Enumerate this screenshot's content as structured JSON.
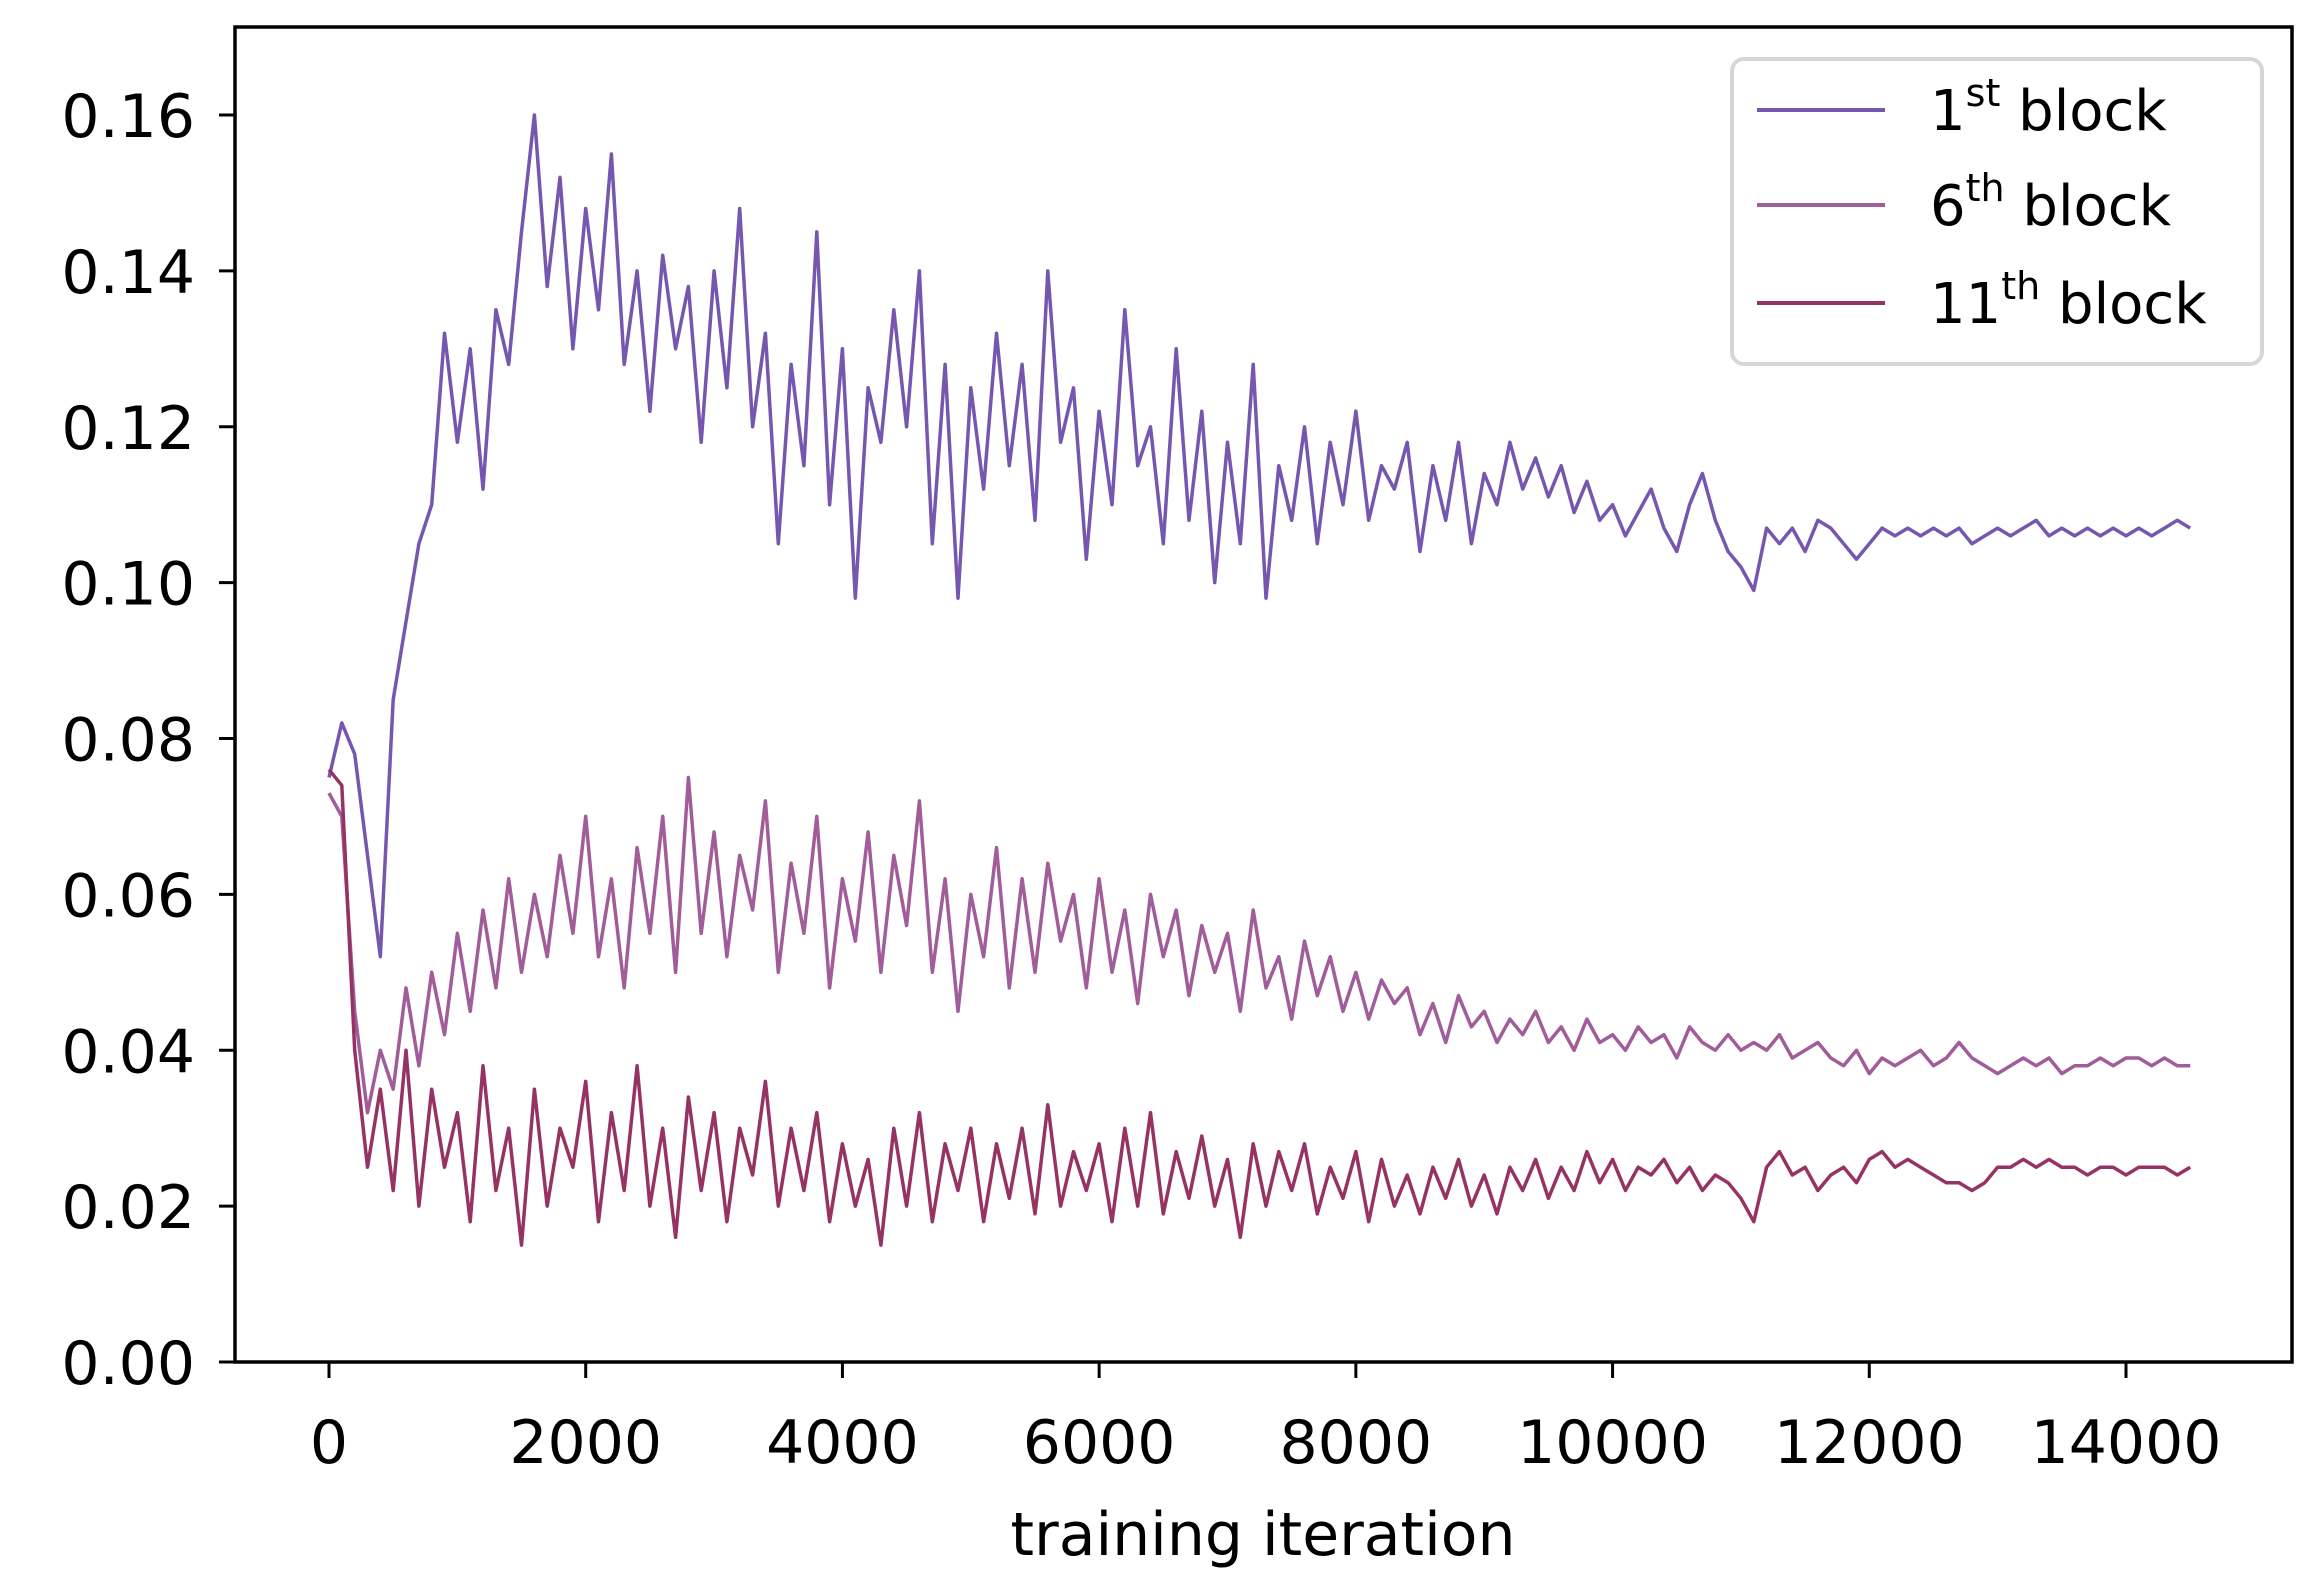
{
  "chart_data": {
    "type": "line",
    "title": "",
    "xlabel": "training iteration",
    "ylabel": "",
    "xlim": [
      -900,
      15300
    ],
    "ylim": [
      0,
      0.17
    ],
    "xticks": [
      0,
      2000,
      4000,
      6000,
      8000,
      10000,
      12000,
      14000
    ],
    "xtick_labels": [
      "0",
      "2000",
      "4000",
      "6000",
      "8000",
      "10000",
      "12000",
      "14000"
    ],
    "yticks": [
      0,
      0.02,
      0.04,
      0.06,
      0.08,
      0.1,
      0.12,
      0.14,
      0.16
    ],
    "ytick_labels": [
      "0.00",
      "0.02",
      "0.04",
      "0.06",
      "0.08",
      "0.10",
      "0.12",
      "0.14",
      "0.16"
    ],
    "grid": false,
    "legend_position": "top-right",
    "x_start": 0,
    "x_step": 100,
    "series": [
      {
        "name": "1st block",
        "label_main": "1",
        "label_sup": "st",
        "label_rest": " block",
        "color": "#7657b0",
        "values": [
          0.075,
          0.082,
          0.078,
          0.065,
          0.052,
          0.085,
          0.095,
          0.105,
          0.11,
          0.132,
          0.118,
          0.13,
          0.112,
          0.135,
          0.128,
          0.145,
          0.16,
          0.138,
          0.152,
          0.13,
          0.148,
          0.135,
          0.155,
          0.128,
          0.14,
          0.122,
          0.142,
          0.13,
          0.138,
          0.118,
          0.14,
          0.125,
          0.148,
          0.12,
          0.132,
          0.105,
          0.128,
          0.115,
          0.145,
          0.11,
          0.13,
          0.098,
          0.125,
          0.118,
          0.135,
          0.12,
          0.14,
          0.105,
          0.128,
          0.098,
          0.125,
          0.112,
          0.132,
          0.115,
          0.128,
          0.108,
          0.14,
          0.118,
          0.125,
          0.103,
          0.122,
          0.11,
          0.135,
          0.115,
          0.12,
          0.105,
          0.13,
          0.108,
          0.122,
          0.1,
          0.118,
          0.105,
          0.128,
          0.098,
          0.115,
          0.108,
          0.12,
          0.105,
          0.118,
          0.11,
          0.122,
          0.108,
          0.115,
          0.112,
          0.118,
          0.104,
          0.115,
          0.108,
          0.118,
          0.105,
          0.114,
          0.11,
          0.118,
          0.112,
          0.116,
          0.111,
          0.115,
          0.109,
          0.113,
          0.108,
          0.11,
          0.106,
          0.109,
          0.112,
          0.107,
          0.104,
          0.11,
          0.114,
          0.108,
          0.104,
          0.102,
          0.099,
          0.107,
          0.105,
          0.107,
          0.104,
          0.108,
          0.107,
          0.105,
          0.103,
          0.105,
          0.107,
          0.106,
          0.107,
          0.106,
          0.107,
          0.106,
          0.107,
          0.105,
          0.106,
          0.107,
          0.106,
          0.107,
          0.108,
          0.106,
          0.107,
          0.106,
          0.107,
          0.106,
          0.107,
          0.106,
          0.107,
          0.106,
          0.107,
          0.108,
          0.107
        ]
      },
      {
        "name": "6th block",
        "label_main": "6",
        "label_sup": "th",
        "label_rest": " block",
        "color": "#a15c9a",
        "values": [
          0.073,
          0.07,
          0.045,
          0.032,
          0.04,
          0.035,
          0.048,
          0.038,
          0.05,
          0.042,
          0.055,
          0.045,
          0.058,
          0.048,
          0.062,
          0.05,
          0.06,
          0.052,
          0.065,
          0.055,
          0.07,
          0.052,
          0.062,
          0.048,
          0.066,
          0.055,
          0.07,
          0.05,
          0.075,
          0.055,
          0.068,
          0.052,
          0.065,
          0.058,
          0.072,
          0.05,
          0.064,
          0.055,
          0.07,
          0.048,
          0.062,
          0.054,
          0.068,
          0.05,
          0.065,
          0.056,
          0.072,
          0.05,
          0.062,
          0.045,
          0.06,
          0.052,
          0.066,
          0.048,
          0.062,
          0.05,
          0.064,
          0.054,
          0.06,
          0.048,
          0.062,
          0.05,
          0.058,
          0.046,
          0.06,
          0.052,
          0.058,
          0.047,
          0.056,
          0.05,
          0.055,
          0.045,
          0.058,
          0.048,
          0.052,
          0.044,
          0.054,
          0.047,
          0.052,
          0.045,
          0.05,
          0.044,
          0.049,
          0.046,
          0.048,
          0.042,
          0.046,
          0.041,
          0.047,
          0.043,
          0.045,
          0.041,
          0.044,
          0.042,
          0.045,
          0.041,
          0.043,
          0.04,
          0.044,
          0.041,
          0.042,
          0.04,
          0.043,
          0.041,
          0.042,
          0.039,
          0.043,
          0.041,
          0.04,
          0.042,
          0.04,
          0.041,
          0.04,
          0.042,
          0.039,
          0.04,
          0.041,
          0.039,
          0.038,
          0.04,
          0.037,
          0.039,
          0.038,
          0.039,
          0.04,
          0.038,
          0.039,
          0.041,
          0.039,
          0.038,
          0.037,
          0.038,
          0.039,
          0.038,
          0.039,
          0.037,
          0.038,
          0.038,
          0.039,
          0.038,
          0.039,
          0.039,
          0.038,
          0.039,
          0.038,
          0.038
        ]
      },
      {
        "name": "11th block",
        "label_main": "11",
        "label_sup": "th",
        "label_rest": " block",
        "color": "#963363",
        "values": [
          0.076,
          0.074,
          0.04,
          0.025,
          0.035,
          0.022,
          0.04,
          0.02,
          0.035,
          0.025,
          0.032,
          0.018,
          0.038,
          0.022,
          0.03,
          0.015,
          0.035,
          0.02,
          0.03,
          0.025,
          0.036,
          0.018,
          0.032,
          0.022,
          0.038,
          0.02,
          0.03,
          0.016,
          0.034,
          0.022,
          0.032,
          0.018,
          0.03,
          0.024,
          0.036,
          0.02,
          0.03,
          0.022,
          0.032,
          0.018,
          0.028,
          0.02,
          0.026,
          0.015,
          0.03,
          0.02,
          0.032,
          0.018,
          0.028,
          0.022,
          0.03,
          0.018,
          0.028,
          0.021,
          0.03,
          0.019,
          0.033,
          0.02,
          0.027,
          0.022,
          0.028,
          0.018,
          0.03,
          0.02,
          0.032,
          0.019,
          0.027,
          0.021,
          0.029,
          0.02,
          0.026,
          0.016,
          0.028,
          0.02,
          0.027,
          0.022,
          0.028,
          0.019,
          0.025,
          0.021,
          0.027,
          0.018,
          0.026,
          0.02,
          0.024,
          0.019,
          0.025,
          0.021,
          0.026,
          0.02,
          0.024,
          0.019,
          0.025,
          0.022,
          0.026,
          0.021,
          0.025,
          0.022,
          0.027,
          0.023,
          0.026,
          0.022,
          0.025,
          0.024,
          0.026,
          0.023,
          0.025,
          0.022,
          0.024,
          0.023,
          0.021,
          0.018,
          0.025,
          0.027,
          0.024,
          0.025,
          0.022,
          0.024,
          0.025,
          0.023,
          0.026,
          0.027,
          0.025,
          0.026,
          0.025,
          0.024,
          0.023,
          0.023,
          0.022,
          0.023,
          0.025,
          0.025,
          0.026,
          0.025,
          0.026,
          0.025,
          0.025,
          0.024,
          0.025,
          0.025,
          0.024,
          0.025,
          0.025,
          0.025,
          0.024,
          0.025
        ]
      }
    ]
  }
}
